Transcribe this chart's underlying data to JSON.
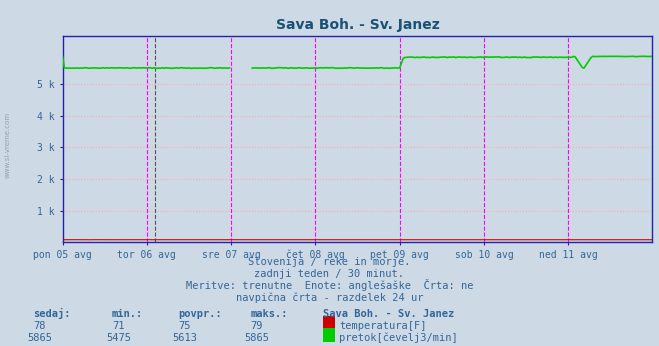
{
  "title": "Sava Boh. - Sv. Janez",
  "title_color": "#1a5276",
  "bg_color": "#cdd9e5",
  "plot_bg_color": "#cdd9e5",
  "ylim": [
    0,
    6500
  ],
  "xlabel_days": [
    "pon 05 avg",
    "tor 06 avg",
    "sre 07 avg",
    "čet 08 avg",
    "pet 09 avg",
    "sob 10 avg",
    "ned 11 avg"
  ],
  "n_points": 337,
  "temp_value": 78,
  "temp_min": 71,
  "temp_avg": 75,
  "temp_max": 79,
  "flow_value": 5865,
  "flow_min": 5475,
  "flow_avg": 5613,
  "flow_max": 5865,
  "temp_color": "#cc0000",
  "flow_color": "#00cc00",
  "grid_color": "#ffaaaa",
  "vline_color": "#ff00ff",
  "vline_black_color": "#555555",
  "spine_color": "#2222aa",
  "tick_color": "#336699",
  "watermark": "www.si-vreme.com",
  "footer_line1": "Slovenija / reke in morje.",
  "footer_line2": "zadnji teden / 30 minut.",
  "footer_line3": "Meritve: trenutne  Enote: anglešaške  Črta: ne",
  "footer_line4": "navpična črta - razdelek 24 ur",
  "left_label": "www.si-vreme.com",
  "legend_title": "Sava Boh. - Sv. Janez",
  "legend_items": [
    "temperatura[F]",
    "pretok[čevelj3/min]"
  ],
  "legend_colors": [
    "#cc0000",
    "#00cc00"
  ],
  "header_labels": [
    "sedaj:",
    "min.:",
    "povpr.:",
    "maks.:"
  ],
  "temp_row": [
    78,
    71,
    75,
    79
  ],
  "flow_row": [
    5865,
    5475,
    5613,
    5865
  ]
}
